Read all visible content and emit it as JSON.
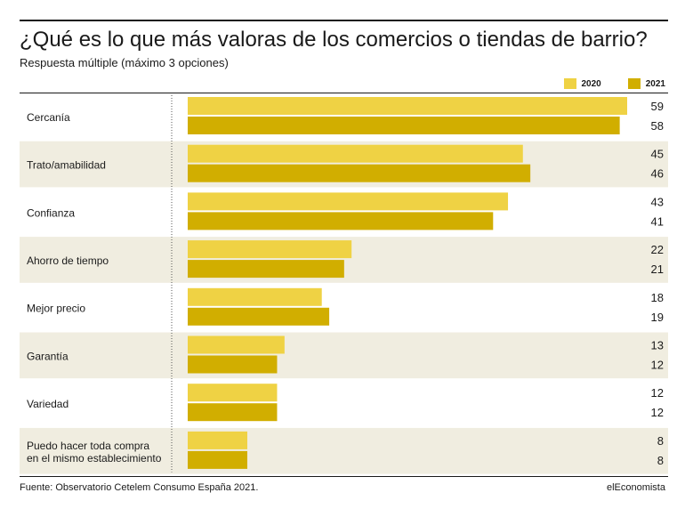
{
  "title": "¿Qué es lo que más valoras de los comercios o tiendas de barrio?",
  "subtitle": "Respuesta múltiple (máximo 3 opciones)",
  "source": "Fuente: Observatorio Cetelem Consumo España 2021.",
  "brand": "elEconomista",
  "colors": {
    "series_2020": "#efd244",
    "series_2021": "#d1ae00",
    "band": "#f0ede0",
    "divider": "#555555"
  },
  "chart_data": {
    "type": "bar",
    "orientation": "horizontal",
    "categories": [
      "Cercanía",
      "Trato/amabilidad",
      "Confianza",
      "Ahorro de tiempo",
      "Mejor precio",
      "Garantía",
      "Variedad",
      "Puedo hacer toda compra\nen el mismo establecimiento"
    ],
    "series": [
      {
        "name": "2020",
        "values": [
          59,
          45,
          43,
          22,
          18,
          13,
          12,
          8
        ]
      },
      {
        "name": "2021",
        "values": [
          58,
          46,
          41,
          21,
          19,
          12,
          12,
          8
        ]
      }
    ],
    "xlim": [
      0,
      59
    ],
    "grid": false,
    "legend_position": "top-right",
    "data_labels": true
  }
}
